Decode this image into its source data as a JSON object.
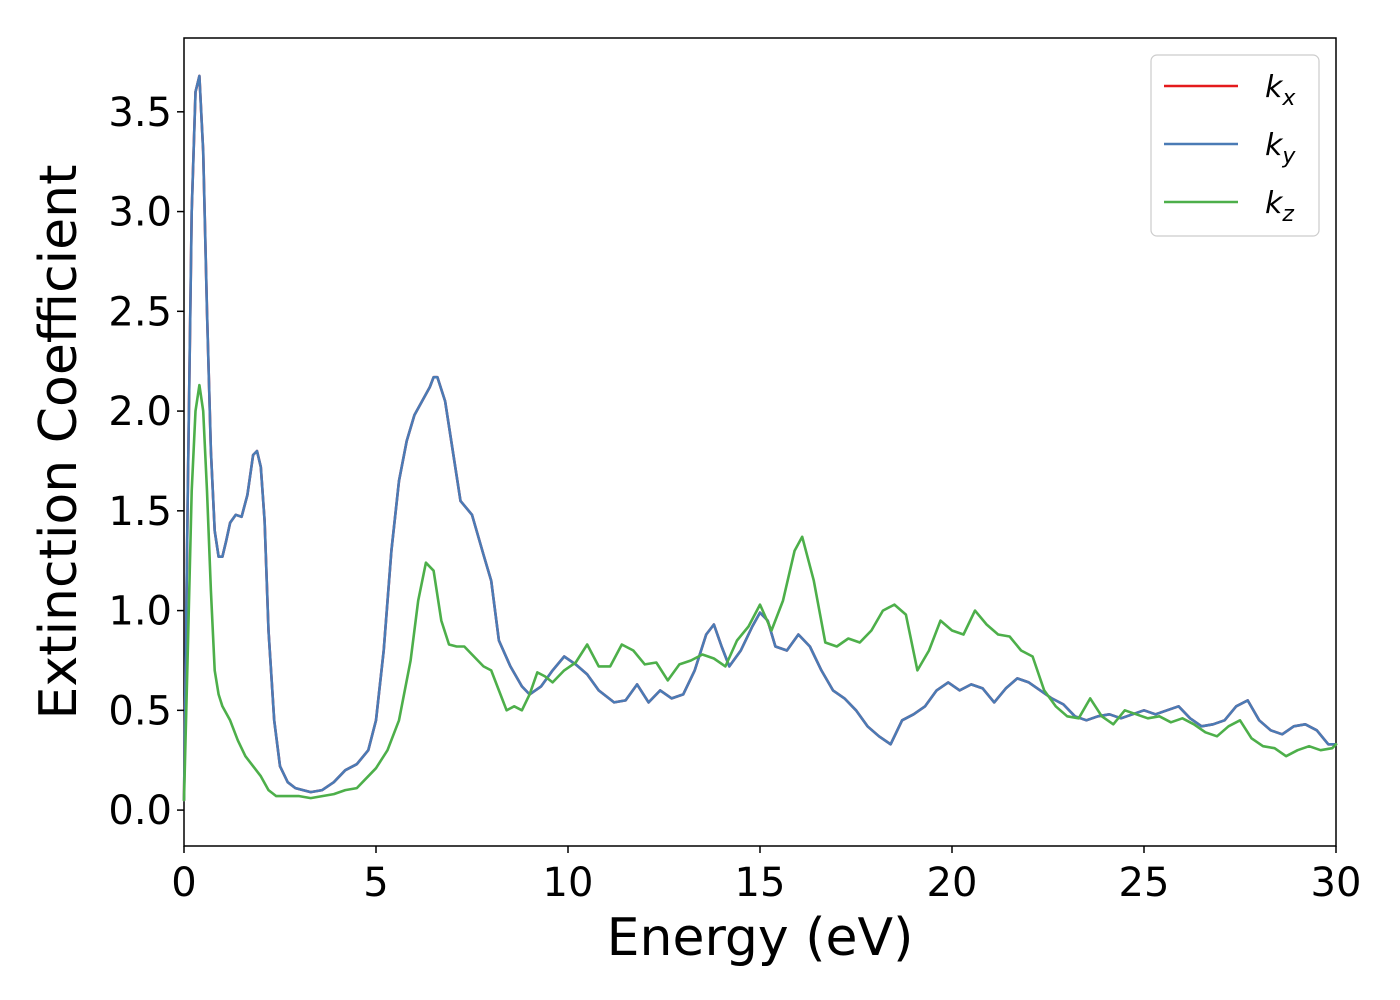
{
  "chart_data": {
    "type": "line",
    "xlabel": "Energy (eV)",
    "ylabel": "Extinction Coefficient",
    "xlim": [
      0,
      30
    ],
    "ylim": [
      -0.18,
      3.87
    ],
    "xticks": [
      0,
      5,
      10,
      15,
      20,
      25,
      30
    ],
    "yticks": [
      0.0,
      0.5,
      1.0,
      1.5,
      2.0,
      2.5,
      3.0,
      3.5
    ],
    "xtick_labels": [
      "0",
      "5",
      "10",
      "15",
      "20",
      "25",
      "30"
    ],
    "ytick_labels": [
      "0.0",
      "0.5",
      "1.0",
      "1.5",
      "2.0",
      "2.5",
      "3.0",
      "3.5"
    ],
    "grid": false,
    "legend_position": "top-right",
    "series": [
      {
        "name": "k_x",
        "label_main": "k",
        "label_sub": "x",
        "color": "#e41a1c",
        "x": [
          0,
          0.1,
          0.2,
          0.3,
          0.4,
          0.5,
          0.6,
          0.7,
          0.8,
          0.9,
          1.0,
          1.1,
          1.2,
          1.35,
          1.5,
          1.65,
          1.8,
          1.9,
          2.0,
          2.1,
          2.2,
          2.35,
          2.5,
          2.7,
          2.9,
          3.1,
          3.3,
          3.6,
          3.9,
          4.2,
          4.5,
          4.8,
          5.0,
          5.2,
          5.4,
          5.6,
          5.8,
          6.0,
          6.2,
          6.4,
          6.5,
          6.6,
          6.8,
          7.0,
          7.2,
          7.5,
          7.8,
          8.0,
          8.2,
          8.5,
          8.8,
          9.0,
          9.3,
          9.6,
          9.9,
          10.2,
          10.5,
          10.8,
          11.2,
          11.5,
          11.8,
          12.1,
          12.4,
          12.7,
          13.0,
          13.3,
          13.6,
          13.8,
          14.0,
          14.2,
          14.5,
          14.8,
          15.0,
          15.2,
          15.4,
          15.7,
          16.0,
          16.3,
          16.6,
          16.9,
          17.2,
          17.5,
          17.8,
          18.1,
          18.4,
          18.7,
          19.0,
          19.3,
          19.6,
          19.9,
          20.2,
          20.5,
          20.8,
          21.1,
          21.4,
          21.7,
          22.0,
          22.3,
          22.6,
          22.9,
          23.2,
          23.5,
          23.8,
          24.1,
          24.4,
          24.7,
          25.0,
          25.3,
          25.6,
          25.9,
          26.2,
          26.5,
          26.8,
          27.1,
          27.4,
          27.7,
          28.0,
          28.3,
          28.6,
          28.9,
          29.2,
          29.5,
          29.8,
          30.0
        ],
        "y": [
          0.05,
          1.6,
          3.0,
          3.6,
          3.68,
          3.3,
          2.5,
          1.8,
          1.4,
          1.27,
          1.27,
          1.35,
          1.44,
          1.48,
          1.47,
          1.58,
          1.78,
          1.8,
          1.72,
          1.45,
          0.9,
          0.45,
          0.22,
          0.14,
          0.11,
          0.1,
          0.09,
          0.1,
          0.14,
          0.2,
          0.23,
          0.3,
          0.45,
          0.8,
          1.3,
          1.65,
          1.85,
          1.98,
          2.05,
          2.12,
          2.17,
          2.17,
          2.05,
          1.8,
          1.55,
          1.48,
          1.28,
          1.15,
          0.85,
          0.72,
          0.62,
          0.58,
          0.62,
          0.7,
          0.77,
          0.73,
          0.68,
          0.6,
          0.54,
          0.55,
          0.63,
          0.54,
          0.6,
          0.56,
          0.58,
          0.7,
          0.88,
          0.93,
          0.82,
          0.72,
          0.8,
          0.92,
          0.99,
          0.95,
          0.82,
          0.8,
          0.88,
          0.82,
          0.7,
          0.6,
          0.56,
          0.5,
          0.42,
          0.37,
          0.33,
          0.45,
          0.48,
          0.52,
          0.6,
          0.64,
          0.6,
          0.63,
          0.61,
          0.54,
          0.61,
          0.66,
          0.64,
          0.6,
          0.56,
          0.53,
          0.47,
          0.45,
          0.47,
          0.48,
          0.46,
          0.48,
          0.5,
          0.48,
          0.5,
          0.52,
          0.46,
          0.42,
          0.43,
          0.45,
          0.52,
          0.55,
          0.45,
          0.4,
          0.38,
          0.42,
          0.43,
          0.4,
          0.33,
          0.33
        ]
      },
      {
        "name": "k_y",
        "label_main": "k",
        "label_sub": "y",
        "color": "#4a7bb5",
        "x": [
          0,
          0.1,
          0.2,
          0.3,
          0.4,
          0.5,
          0.6,
          0.7,
          0.8,
          0.9,
          1.0,
          1.1,
          1.2,
          1.35,
          1.5,
          1.65,
          1.8,
          1.9,
          2.0,
          2.1,
          2.2,
          2.35,
          2.5,
          2.7,
          2.9,
          3.1,
          3.3,
          3.6,
          3.9,
          4.2,
          4.5,
          4.8,
          5.0,
          5.2,
          5.4,
          5.6,
          5.8,
          6.0,
          6.2,
          6.4,
          6.5,
          6.6,
          6.8,
          7.0,
          7.2,
          7.5,
          7.8,
          8.0,
          8.2,
          8.5,
          8.8,
          9.0,
          9.3,
          9.6,
          9.9,
          10.2,
          10.5,
          10.8,
          11.2,
          11.5,
          11.8,
          12.1,
          12.4,
          12.7,
          13.0,
          13.3,
          13.6,
          13.8,
          14.0,
          14.2,
          14.5,
          14.8,
          15.0,
          15.2,
          15.4,
          15.7,
          16.0,
          16.3,
          16.6,
          16.9,
          17.2,
          17.5,
          17.8,
          18.1,
          18.4,
          18.7,
          19.0,
          19.3,
          19.6,
          19.9,
          20.2,
          20.5,
          20.8,
          21.1,
          21.4,
          21.7,
          22.0,
          22.3,
          22.6,
          22.9,
          23.2,
          23.5,
          23.8,
          24.1,
          24.4,
          24.7,
          25.0,
          25.3,
          25.6,
          25.9,
          26.2,
          26.5,
          26.8,
          27.1,
          27.4,
          27.7,
          28.0,
          28.3,
          28.6,
          28.9,
          29.2,
          29.5,
          29.8,
          30.0
        ],
        "y": [
          0.05,
          1.6,
          3.0,
          3.6,
          3.68,
          3.3,
          2.5,
          1.8,
          1.4,
          1.27,
          1.27,
          1.35,
          1.44,
          1.48,
          1.47,
          1.58,
          1.78,
          1.8,
          1.72,
          1.45,
          0.9,
          0.45,
          0.22,
          0.14,
          0.11,
          0.1,
          0.09,
          0.1,
          0.14,
          0.2,
          0.23,
          0.3,
          0.45,
          0.8,
          1.3,
          1.65,
          1.85,
          1.98,
          2.05,
          2.12,
          2.17,
          2.17,
          2.05,
          1.8,
          1.55,
          1.48,
          1.28,
          1.15,
          0.85,
          0.72,
          0.62,
          0.58,
          0.62,
          0.7,
          0.77,
          0.73,
          0.68,
          0.6,
          0.54,
          0.55,
          0.63,
          0.54,
          0.6,
          0.56,
          0.58,
          0.7,
          0.88,
          0.93,
          0.82,
          0.72,
          0.8,
          0.92,
          0.99,
          0.95,
          0.82,
          0.8,
          0.88,
          0.82,
          0.7,
          0.6,
          0.56,
          0.5,
          0.42,
          0.37,
          0.33,
          0.45,
          0.48,
          0.52,
          0.6,
          0.64,
          0.6,
          0.63,
          0.61,
          0.54,
          0.61,
          0.66,
          0.64,
          0.6,
          0.56,
          0.53,
          0.47,
          0.45,
          0.47,
          0.48,
          0.46,
          0.48,
          0.5,
          0.48,
          0.5,
          0.52,
          0.46,
          0.42,
          0.43,
          0.45,
          0.52,
          0.55,
          0.45,
          0.4,
          0.38,
          0.42,
          0.43,
          0.4,
          0.33,
          0.33
        ]
      },
      {
        "name": "k_z",
        "label_main": "k",
        "label_sub": "z",
        "color": "#4daf4a",
        "x": [
          0,
          0.1,
          0.2,
          0.3,
          0.4,
          0.5,
          0.6,
          0.7,
          0.8,
          0.9,
          1.0,
          1.2,
          1.4,
          1.6,
          1.8,
          2.0,
          2.2,
          2.4,
          2.6,
          2.8,
          3.0,
          3.3,
          3.6,
          3.9,
          4.2,
          4.5,
          4.8,
          5.0,
          5.3,
          5.6,
          5.9,
          6.1,
          6.3,
          6.5,
          6.7,
          6.9,
          7.1,
          7.3,
          7.5,
          7.8,
          8.0,
          8.2,
          8.4,
          8.6,
          8.8,
          9.0,
          9.2,
          9.4,
          9.6,
          9.9,
          10.2,
          10.5,
          10.8,
          11.1,
          11.4,
          11.7,
          12.0,
          12.3,
          12.6,
          12.9,
          13.2,
          13.5,
          13.8,
          14.1,
          14.4,
          14.7,
          15.0,
          15.3,
          15.6,
          15.9,
          16.1,
          16.4,
          16.7,
          17.0,
          17.3,
          17.6,
          17.9,
          18.2,
          18.5,
          18.8,
          19.1,
          19.4,
          19.7,
          20.0,
          20.3,
          20.6,
          20.9,
          21.2,
          21.5,
          21.8,
          22.1,
          22.4,
          22.7,
          23.0,
          23.3,
          23.6,
          23.9,
          24.2,
          24.5,
          24.8,
          25.1,
          25.4,
          25.7,
          26.0,
          26.3,
          26.6,
          26.9,
          27.2,
          27.5,
          27.8,
          28.1,
          28.4,
          28.7,
          29.0,
          29.3,
          29.6,
          29.9,
          30.0
        ],
        "y": [
          0.05,
          0.8,
          1.6,
          2.0,
          2.13,
          2.0,
          1.6,
          1.1,
          0.7,
          0.58,
          0.52,
          0.45,
          0.35,
          0.27,
          0.22,
          0.17,
          0.1,
          0.07,
          0.07,
          0.07,
          0.07,
          0.06,
          0.07,
          0.08,
          0.1,
          0.11,
          0.17,
          0.21,
          0.3,
          0.45,
          0.75,
          1.05,
          1.24,
          1.2,
          0.95,
          0.83,
          0.82,
          0.82,
          0.78,
          0.72,
          0.7,
          0.6,
          0.5,
          0.52,
          0.5,
          0.58,
          0.69,
          0.67,
          0.64,
          0.7,
          0.74,
          0.83,
          0.72,
          0.72,
          0.83,
          0.8,
          0.73,
          0.74,
          0.65,
          0.73,
          0.75,
          0.78,
          0.76,
          0.72,
          0.85,
          0.92,
          1.03,
          0.9,
          1.05,
          1.3,
          1.37,
          1.15,
          0.84,
          0.82,
          0.86,
          0.84,
          0.9,
          1.0,
          1.03,
          0.98,
          0.7,
          0.8,
          0.95,
          0.9,
          0.88,
          1.0,
          0.93,
          0.88,
          0.87,
          0.8,
          0.77,
          0.6,
          0.52,
          0.47,
          0.46,
          0.56,
          0.47,
          0.43,
          0.5,
          0.48,
          0.46,
          0.47,
          0.44,
          0.46,
          0.43,
          0.39,
          0.37,
          0.42,
          0.45,
          0.36,
          0.32,
          0.31,
          0.27,
          0.3,
          0.32,
          0.3,
          0.31,
          0.33
        ]
      }
    ]
  }
}
